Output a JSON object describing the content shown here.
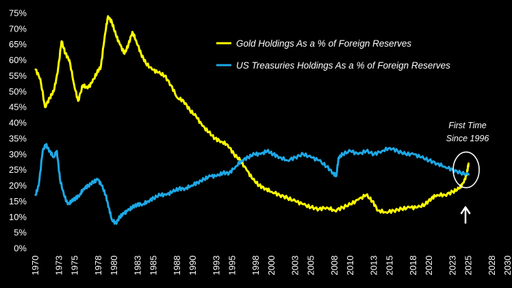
{
  "chart_data": {
    "type": "line",
    "title": "",
    "xlabel": "",
    "ylabel": "",
    "xlim": [
      1970,
      2030
    ],
    "ylim": [
      0,
      75
    ],
    "grid": false,
    "legend_position": "top-right",
    "x_ticks": [
      "1970",
      "1973",
      "1975",
      "1978",
      "1980",
      "1983",
      "1985",
      "1988",
      "1990",
      "1993",
      "1995",
      "1998",
      "2000",
      "2003",
      "2005",
      "2008",
      "2010",
      "2013",
      "2015",
      "2018",
      "2020",
      "2023",
      "2025",
      "2028",
      "2030"
    ],
    "y_ticks": [
      "0%",
      "5%",
      "10%",
      "15%",
      "20%",
      "25%",
      "30%",
      "35%",
      "40%",
      "45%",
      "50%",
      "55%",
      "60%",
      "65%",
      "70%",
      "75%"
    ],
    "series": [
      {
        "name": "Gold Holdings As a % of Foreign Reserves",
        "color": "#ffff00",
        "points": [
          [
            1970,
            57
          ],
          [
            1970.6,
            54
          ],
          [
            1971.2,
            45
          ],
          [
            1971.8,
            48
          ],
          [
            1972.3,
            50
          ],
          [
            1972.8,
            56
          ],
          [
            1973.3,
            66
          ],
          [
            1973.8,
            62
          ],
          [
            1974.3,
            60
          ],
          [
            1974.9,
            52
          ],
          [
            1975.4,
            47
          ],
          [
            1976,
            52
          ],
          [
            1976.6,
            51
          ],
          [
            1977.2,
            53
          ],
          [
            1977.8,
            56
          ],
          [
            1978.3,
            58
          ],
          [
            1978.8,
            68
          ],
          [
            1979.2,
            74
          ],
          [
            1979.7,
            72
          ],
          [
            1980.2,
            68
          ],
          [
            1980.7,
            65
          ],
          [
            1981.3,
            62
          ],
          [
            1981.8,
            65
          ],
          [
            1982.3,
            69
          ],
          [
            1982.8,
            66
          ],
          [
            1983.4,
            62
          ],
          [
            1984,
            59
          ],
          [
            1984.8,
            57
          ],
          [
            1985.6,
            56
          ],
          [
            1986.4,
            55
          ],
          [
            1987.2,
            52
          ],
          [
            1988,
            48
          ],
          [
            1988.8,
            47
          ],
          [
            1989.6,
            44
          ],
          [
            1990.4,
            42
          ],
          [
            1991.2,
            39
          ],
          [
            1992,
            37
          ],
          [
            1992.8,
            35
          ],
          [
            1993.6,
            34
          ],
          [
            1994.4,
            33
          ],
          [
            1995.2,
            30
          ],
          [
            1996,
            28
          ],
          [
            1996.8,
            25
          ],
          [
            1997.6,
            22
          ],
          [
            1998.4,
            20
          ],
          [
            1999.2,
            19
          ],
          [
            2000,
            18
          ],
          [
            2001,
            17
          ],
          [
            2002,
            16
          ],
          [
            2003,
            15
          ],
          [
            2004,
            14
          ],
          [
            2005,
            13
          ],
          [
            2006,
            12.5
          ],
          [
            2007,
            13
          ],
          [
            2008,
            12
          ],
          [
            2009,
            13
          ],
          [
            2010,
            14
          ],
          [
            2011,
            15.5
          ],
          [
            2012,
            17
          ],
          [
            2012.8,
            15
          ],
          [
            2013.5,
            12
          ],
          [
            2014.5,
            11.5
          ],
          [
            2015.5,
            12
          ],
          [
            2016.5,
            12.5
          ],
          [
            2017.5,
            13
          ],
          [
            2018.5,
            13
          ],
          [
            2019.5,
            14
          ],
          [
            2020.3,
            16
          ],
          [
            2021,
            17
          ],
          [
            2022,
            17
          ],
          [
            2023,
            18
          ],
          [
            2023.8,
            19
          ],
          [
            2024.4,
            21
          ],
          [
            2024.8,
            24
          ],
          [
            2025,
            27
          ]
        ]
      },
      {
        "name": "US Treasuries Holdings As a % of Foreign Reserves",
        "color": "#1ea8e6",
        "points": [
          [
            1970,
            17
          ],
          [
            1970.4,
            20
          ],
          [
            1970.9,
            31
          ],
          [
            1971.3,
            33
          ],
          [
            1971.8,
            31
          ],
          [
            1972.3,
            29
          ],
          [
            1972.7,
            31
          ],
          [
            1973.1,
            22
          ],
          [
            1973.6,
            17
          ],
          [
            1974.1,
            14
          ],
          [
            1974.6,
            15
          ],
          [
            1975.1,
            16
          ],
          [
            1975.6,
            17
          ],
          [
            1976.1,
            19
          ],
          [
            1976.7,
            20
          ],
          [
            1977.3,
            21
          ],
          [
            1977.9,
            22
          ],
          [
            1978.4,
            20
          ],
          [
            1978.9,
            17
          ],
          [
            1979.3,
            13
          ],
          [
            1979.7,
            9
          ],
          [
            1980.2,
            8
          ],
          [
            1980.7,
            10
          ],
          [
            1981.2,
            11
          ],
          [
            1981.7,
            12
          ],
          [
            1982.3,
            13
          ],
          [
            1982.9,
            14
          ],
          [
            1983.6,
            14
          ],
          [
            1984.3,
            15
          ],
          [
            1985,
            16
          ],
          [
            1985.8,
            17
          ],
          [
            1986.6,
            17
          ],
          [
            1987.4,
            18
          ],
          [
            1988.2,
            19
          ],
          [
            1989,
            19
          ],
          [
            1989.8,
            20
          ],
          [
            1990.6,
            21
          ],
          [
            1991.4,
            22
          ],
          [
            1992.2,
            23
          ],
          [
            1993,
            23
          ],
          [
            1993.8,
            24
          ],
          [
            1994.6,
            24
          ],
          [
            1995.4,
            26
          ],
          [
            1996.2,
            28
          ],
          [
            1997,
            29
          ],
          [
            1997.8,
            30
          ],
          [
            1998.6,
            30
          ],
          [
            1999.4,
            31
          ],
          [
            2000.2,
            30
          ],
          [
            2001,
            29
          ],
          [
            2002,
            28
          ],
          [
            2003,
            29
          ],
          [
            2004,
            30
          ],
          [
            2005,
            29
          ],
          [
            2006,
            28
          ],
          [
            2007,
            26
          ],
          [
            2007.8,
            24
          ],
          [
            2008.2,
            23
          ],
          [
            2008.5,
            29
          ],
          [
            2009,
            30
          ],
          [
            2010,
            31
          ],
          [
            2011,
            30
          ],
          [
            2012,
            31
          ],
          [
            2013,
            30
          ],
          [
            2014,
            31
          ],
          [
            2015,
            32
          ],
          [
            2016,
            31
          ],
          [
            2017,
            30
          ],
          [
            2018,
            30
          ],
          [
            2019,
            29
          ],
          [
            2020,
            28
          ],
          [
            2021,
            27
          ],
          [
            2022,
            26
          ],
          [
            2023,
            25
          ],
          [
            2024,
            24
          ],
          [
            2025,
            23.5
          ]
        ]
      }
    ],
    "annotation": {
      "text_line1": "First Time",
      "text_line2": "Since 1996",
      "x": 2024.7,
      "y": 25
    }
  }
}
